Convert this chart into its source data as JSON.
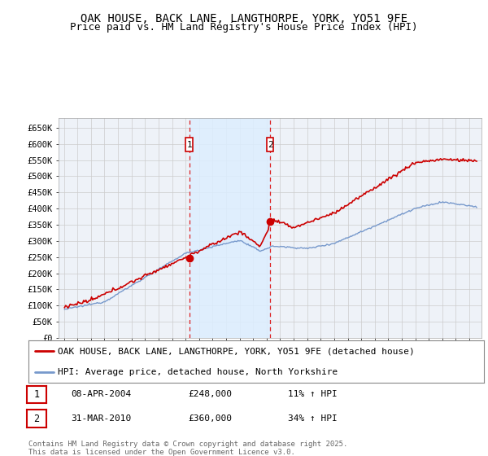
{
  "title": "OAK HOUSE, BACK LANE, LANGTHORPE, YORK, YO51 9FE",
  "subtitle": "Price paid vs. HM Land Registry's House Price Index (HPI)",
  "ylim": [
    0,
    680000
  ],
  "yticks": [
    0,
    50000,
    100000,
    150000,
    200000,
    250000,
    300000,
    350000,
    400000,
    450000,
    500000,
    550000,
    600000,
    650000
  ],
  "ytick_labels": [
    "£0",
    "£50K",
    "£100K",
    "£150K",
    "£200K",
    "£250K",
    "£300K",
    "£350K",
    "£400K",
    "£450K",
    "£500K",
    "£550K",
    "£600K",
    "£650K"
  ],
  "xlim_start": 1994.6,
  "xlim_end": 2025.9,
  "sale1_x": 2004.27,
  "sale1_y": 248000,
  "sale1_label": "1",
  "sale2_x": 2010.25,
  "sale2_y": 360000,
  "sale2_label": "2",
  "vline_color": "#dd2222",
  "shade_color": "#ddeeff",
  "red_line_color": "#cc0000",
  "blue_line_color": "#7799cc",
  "plot_bg_color": "#eef2f8",
  "legend_line1": "OAK HOUSE, BACK LANE, LANGTHORPE, YORK, YO51 9FE (detached house)",
  "legend_line2": "HPI: Average price, detached house, North Yorkshire",
  "table_row1_num": "1",
  "table_row1_date": "08-APR-2004",
  "table_row1_price": "£248,000",
  "table_row1_hpi": "11% ↑ HPI",
  "table_row2_num": "2",
  "table_row2_date": "31-MAR-2010",
  "table_row2_price": "£360,000",
  "table_row2_hpi": "34% ↑ HPI",
  "footer": "Contains HM Land Registry data © Crown copyright and database right 2025.\nThis data is licensed under the Open Government Licence v3.0.",
  "grid_color": "#cccccc",
  "title_fontsize": 10,
  "subtitle_fontsize": 9,
  "tick_fontsize": 7.5,
  "legend_fontsize": 8,
  "table_fontsize": 8,
  "footer_fontsize": 6.5
}
